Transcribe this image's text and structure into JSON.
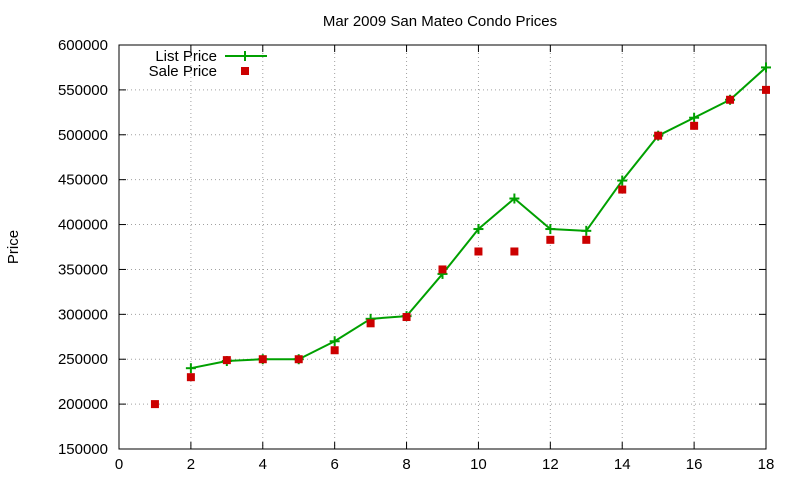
{
  "chart_data": {
    "type": "line",
    "title": "Mar 2009 San Mateo Condo Prices",
    "xlabel": "",
    "ylabel": "Price",
    "xlim": [
      0,
      18
    ],
    "ylim": [
      150000,
      600000
    ],
    "xticks": [
      0,
      2,
      4,
      6,
      8,
      10,
      12,
      14,
      16,
      18
    ],
    "yticks": [
      150000,
      200000,
      250000,
      300000,
      350000,
      400000,
      450000,
      500000,
      550000,
      600000
    ],
    "grid": true,
    "legend_position": "top-left",
    "series": [
      {
        "name": "List Price",
        "type": "line",
        "marker": "plus",
        "color": "#00a000",
        "x": [
          2,
          3,
          4,
          5,
          6,
          7,
          8,
          9,
          10,
          11,
          12,
          13,
          14,
          15,
          16,
          17,
          18
        ],
        "y": [
          240000,
          248000,
          250000,
          250000,
          270000,
          295000,
          298000,
          345000,
          395000,
          429000,
          395000,
          393000,
          449000,
          499000,
          519000,
          539000,
          575000
        ]
      },
      {
        "name": "Sale Price",
        "type": "scatter",
        "marker": "square",
        "color": "#cc0000",
        "x": [
          1,
          2,
          3,
          4,
          5,
          6,
          7,
          8,
          9,
          10,
          11,
          12,
          13,
          14,
          15,
          16,
          17,
          18
        ],
        "y": [
          200000,
          230000,
          249000,
          250000,
          250000,
          260000,
          290000,
          297000,
          350000,
          370000,
          370000,
          383000,
          383000,
          439000,
          499000,
          510000,
          539000,
          550000
        ]
      }
    ]
  }
}
